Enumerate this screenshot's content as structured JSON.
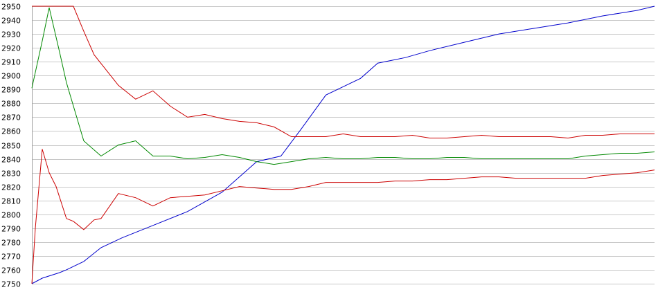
{
  "chart_data": {
    "type": "line",
    "title": "",
    "xlabel": "",
    "ylabel": "",
    "ylim": [
      2750,
      2950
    ],
    "yticks": [
      2750,
      2760,
      2770,
      2780,
      2790,
      2800,
      2810,
      2820,
      2830,
      2840,
      2850,
      2860,
      2870,
      2880,
      2890,
      2900,
      2910,
      2920,
      2930,
      2940,
      2950
    ],
    "xlim": [
      0,
      180
    ],
    "grid": true,
    "legend": "none",
    "series": [
      {
        "color": "#0000cc",
        "x": [
          0,
          3,
          8,
          10,
          15,
          20,
          26,
          35,
          45,
          55,
          65,
          72,
          78,
          85,
          90,
          95,
          100,
          104,
          108,
          115,
          125,
          135,
          145,
          155,
          165,
          175,
          180
        ],
        "y": [
          2750,
          2754,
          2758,
          2760,
          2766,
          2776,
          2783,
          2792,
          2802,
          2816,
          2838,
          2842,
          2862,
          2886,
          2892,
          2898,
          2909,
          2911,
          2913,
          2918,
          2924,
          2930,
          2934,
          2938,
          2943,
          2947,
          2950
        ]
      },
      {
        "color": "#cc0000",
        "x": [
          0,
          5,
          6,
          12,
          15,
          18,
          25,
          30,
          35,
          40,
          45,
          50,
          55,
          60,
          65,
          70,
          75,
          80,
          85,
          90,
          95,
          100,
          105,
          110,
          115,
          120,
          125,
          130,
          135,
          140,
          145,
          150,
          155,
          160,
          165,
          170,
          175,
          180
        ],
        "y": [
          2950,
          2950,
          2950,
          2950,
          2932,
          2915,
          2893,
          2883,
          2889,
          2878,
          2870,
          2872,
          2869,
          2867,
          2866,
          2863,
          2856,
          2856,
          2856,
          2858,
          2856,
          2856,
          2856,
          2857,
          2855,
          2855,
          2856,
          2857,
          2856,
          2856,
          2856,
          2856,
          2855,
          2857,
          2857,
          2858,
          2858,
          2858
        ]
      },
      {
        "color": "#008800",
        "x": [
          0,
          3,
          5,
          8,
          10,
          15,
          20,
          25,
          30,
          35,
          40,
          45,
          50,
          55,
          60,
          65,
          70,
          75,
          80,
          85,
          90,
          95,
          100,
          105,
          110,
          115,
          120,
          125,
          130,
          135,
          140,
          145,
          150,
          155,
          160,
          165,
          170,
          175,
          180
        ],
        "y": [
          2891,
          2925,
          2949,
          2917,
          2895,
          2853,
          2842,
          2850,
          2853,
          2842,
          2842,
          2840,
          2841,
          2843,
          2841,
          2838,
          2836,
          2838,
          2840,
          2841,
          2840,
          2840,
          2841,
          2841,
          2840,
          2840,
          2841,
          2841,
          2840,
          2840,
          2840,
          2840,
          2840,
          2840,
          2842,
          2843,
          2844,
          2844,
          2845
        ]
      },
      {
        "color": "#cc0000",
        "x": [
          0,
          1,
          3,
          5,
          7,
          10,
          12,
          15,
          18,
          20,
          25,
          30,
          35,
          40,
          45,
          50,
          55,
          60,
          65,
          70,
          75,
          80,
          85,
          90,
          95,
          100,
          105,
          110,
          115,
          120,
          125,
          130,
          135,
          140,
          145,
          150,
          155,
          160,
          165,
          170,
          175,
          180
        ],
        "y": [
          2750,
          2790,
          2847,
          2830,
          2820,
          2797,
          2795,
          2789,
          2796,
          2797,
          2815,
          2812,
          2806,
          2812,
          2813,
          2814,
          2817,
          2820,
          2819,
          2818,
          2818,
          2820,
          2823,
          2823,
          2823,
          2823,
          2824,
          2824,
          2825,
          2825,
          2826,
          2827,
          2827,
          2826,
          2826,
          2826,
          2826,
          2826,
          2828,
          2829,
          2830,
          2832
        ]
      }
    ]
  }
}
